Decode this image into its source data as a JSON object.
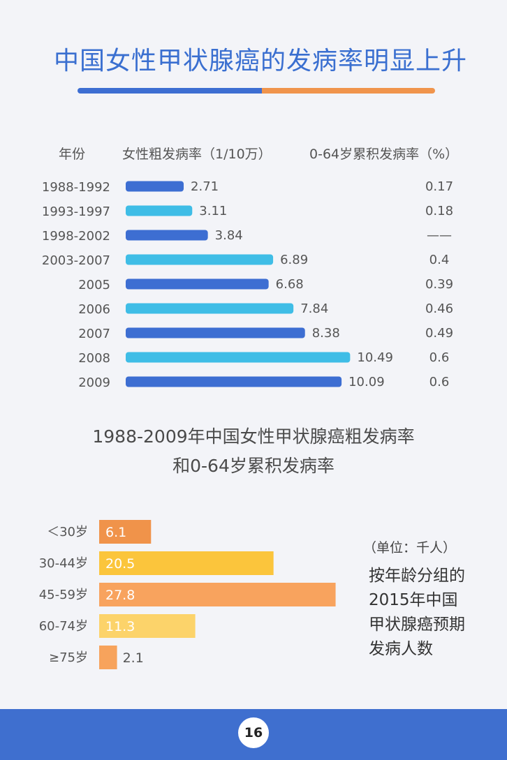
{
  "title": "中国女性甲状腺癌的发病率明显上升",
  "chart_data": [
    {
      "type": "bar",
      "orientation": "horizontal",
      "column_headers": [
        "年份",
        "女性粗发病率（1/10万）",
        "0-64岁累积发病率（%）"
      ],
      "categories": [
        "1988-1992",
        "1993-1997",
        "1998-2002",
        "2003-2007",
        "2005",
        "2006",
        "2007",
        "2008",
        "2009"
      ],
      "series": [
        {
          "values": [
            2.71,
            3.11,
            3.84,
            6.89,
            6.68,
            7.84,
            8.38,
            10.49,
            10.09
          ]
        }
      ],
      "value_labels": [
        "2.71",
        "3.11",
        "3.84",
        "6.89",
        "6.68",
        "7.84",
        "8.38",
        "10.49",
        "10.09"
      ],
      "cumulative_rate": [
        "0.17",
        "0.18",
        "——",
        "0.4",
        "0.39",
        "0.46",
        "0.49",
        "0.6",
        "0.6"
      ],
      "colors": [
        "#3d6ed2",
        "#3fbde6"
      ],
      "xlim": [
        0,
        11
      ],
      "caption": [
        "1988-2009年中国女性甲状腺癌粗发病率",
        "和0-64岁累积发病率"
      ]
    },
    {
      "type": "bar",
      "orientation": "horizontal",
      "categories": [
        "＜30岁",
        "30-44岁",
        "45-59岁",
        "60-74岁",
        "≥75岁"
      ],
      "series": [
        {
          "values": [
            6.1,
            20.5,
            27.8,
            11.3,
            2.1
          ]
        }
      ],
      "value_labels": [
        "6.1",
        "20.5",
        "27.8",
        "11.3",
        "2.1"
      ],
      "colors": [
        "#f0934a",
        "#fbc53c",
        "#f8a35e",
        "#fcd36a",
        "#f7a35c"
      ],
      "xlim": [
        0,
        28
      ],
      "unit": "（单位：千人）",
      "side_title": [
        "按年龄分组的",
        "2015年中国",
        "甲状腺癌预期",
        "发病人数"
      ]
    }
  ],
  "page_number": "16"
}
